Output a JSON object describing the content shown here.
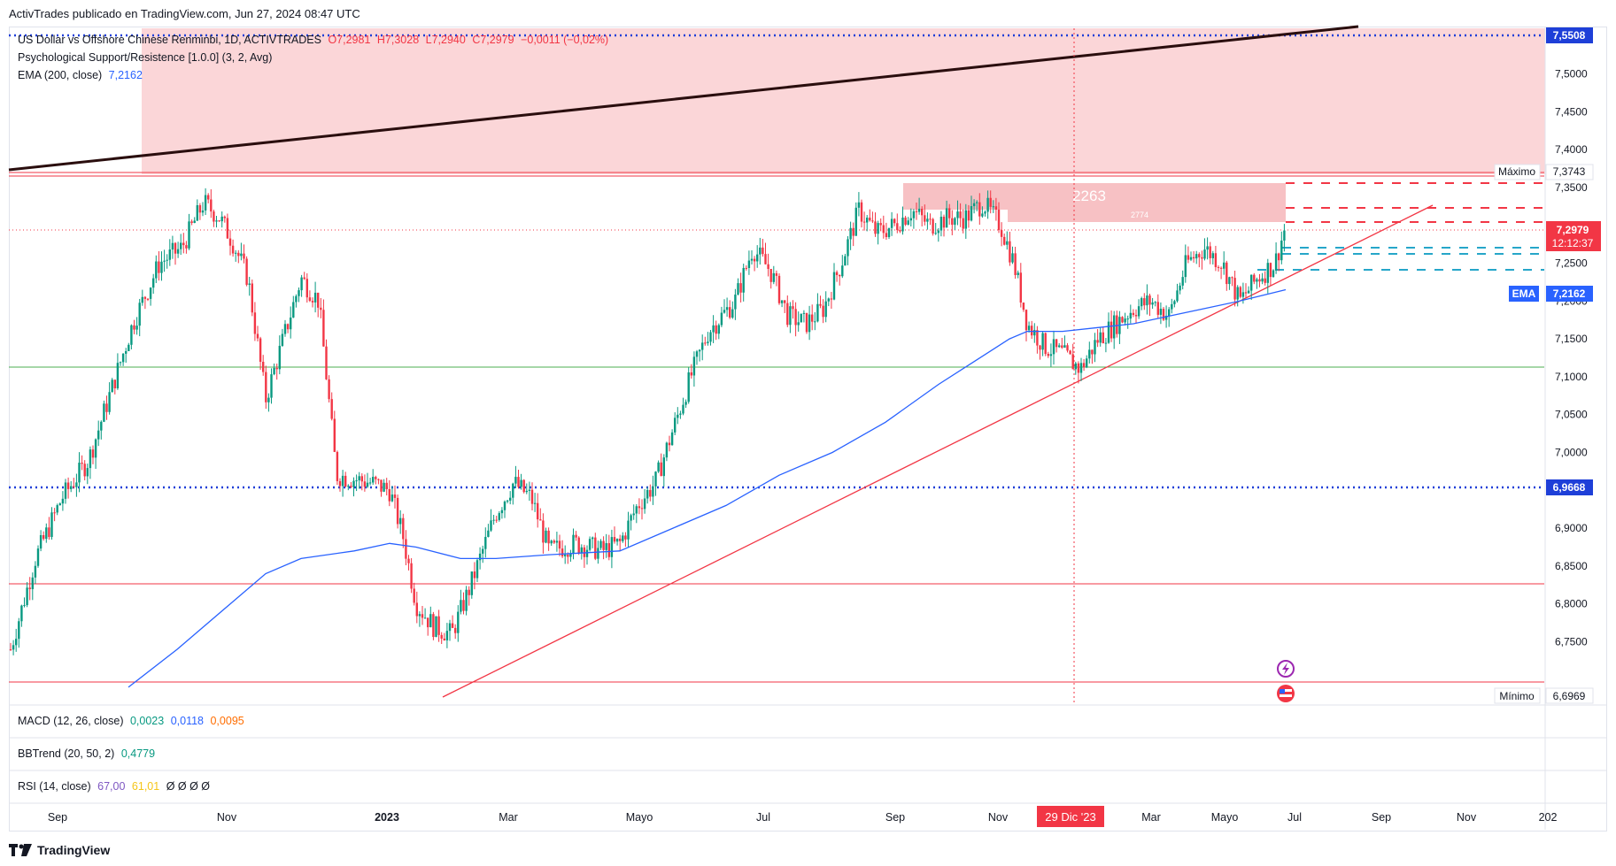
{
  "header": {
    "published_by": "ActivTrades publicado en TradingView.com, Jun 27, 2024 08:47 UTC"
  },
  "symbol_legend": {
    "name": "US Dollar vs Offshore Chinese Renminbi, 1D, ACTIVTRADES",
    "open": "O7,2981",
    "high": "H7,3028",
    "low": "L7,2940",
    "close": "C7,2979",
    "change": "−0,0011 (−0,02%)"
  },
  "indicator_legend": {
    "psr": "Psychological Support/Resistence [1.0.0] (3, 2, Avg)",
    "ema_label": "EMA (200, close)",
    "ema_value": "7,2162"
  },
  "panes": {
    "macd": {
      "label": "MACD (12, 26, close)",
      "v1": "0,0023",
      "v2": "0,0118",
      "v3": "0,0095"
    },
    "bbtrend": {
      "label": "BBTrend (20, 50, 2)",
      "v1": "0,4779"
    },
    "rsi": {
      "label": "RSI (14, close)",
      "v1": "67,00",
      "v2": "61,01",
      "v3": "Ø Ø Ø Ø"
    }
  },
  "price_axis": {
    "ticks": [
      "7,5000",
      "7,4500",
      "7,4000",
      "7,3500",
      "7,2500",
      "7,2000",
      "7,1500",
      "7,1000",
      "7,0500",
      "7,0000",
      "6,9500",
      "6,9000",
      "6,8500",
      "6,8000",
      "6,7500"
    ],
    "badges": {
      "top": "7,5508",
      "max_label": "Máximo",
      "max": "7,3743",
      "last": "7,2979",
      "countdown": "12:12:37",
      "ema_tag": "EMA",
      "ema": "7,2162",
      "blue_level": "6,9668",
      "min_label": "Mínimo",
      "min": "6,6969"
    }
  },
  "time_axis": {
    "labels": [
      "Sep",
      "Nov",
      "2023",
      "Mar",
      "Mayo",
      "Jul",
      "Sep",
      "Nov",
      "Mar",
      "Mayo",
      "Jul",
      "Sep",
      "Nov",
      "202"
    ],
    "crosshair_date": "29 Dic '23"
  },
  "zones": {
    "big_label": "2263",
    "small_label": "2774"
  },
  "colors": {
    "up": "#089981",
    "down": "#f23645",
    "ema": "#2962ff",
    "zone": "#f9c8cb",
    "trend": "#f23645"
  },
  "footer": {
    "brand": "TradingView"
  }
}
